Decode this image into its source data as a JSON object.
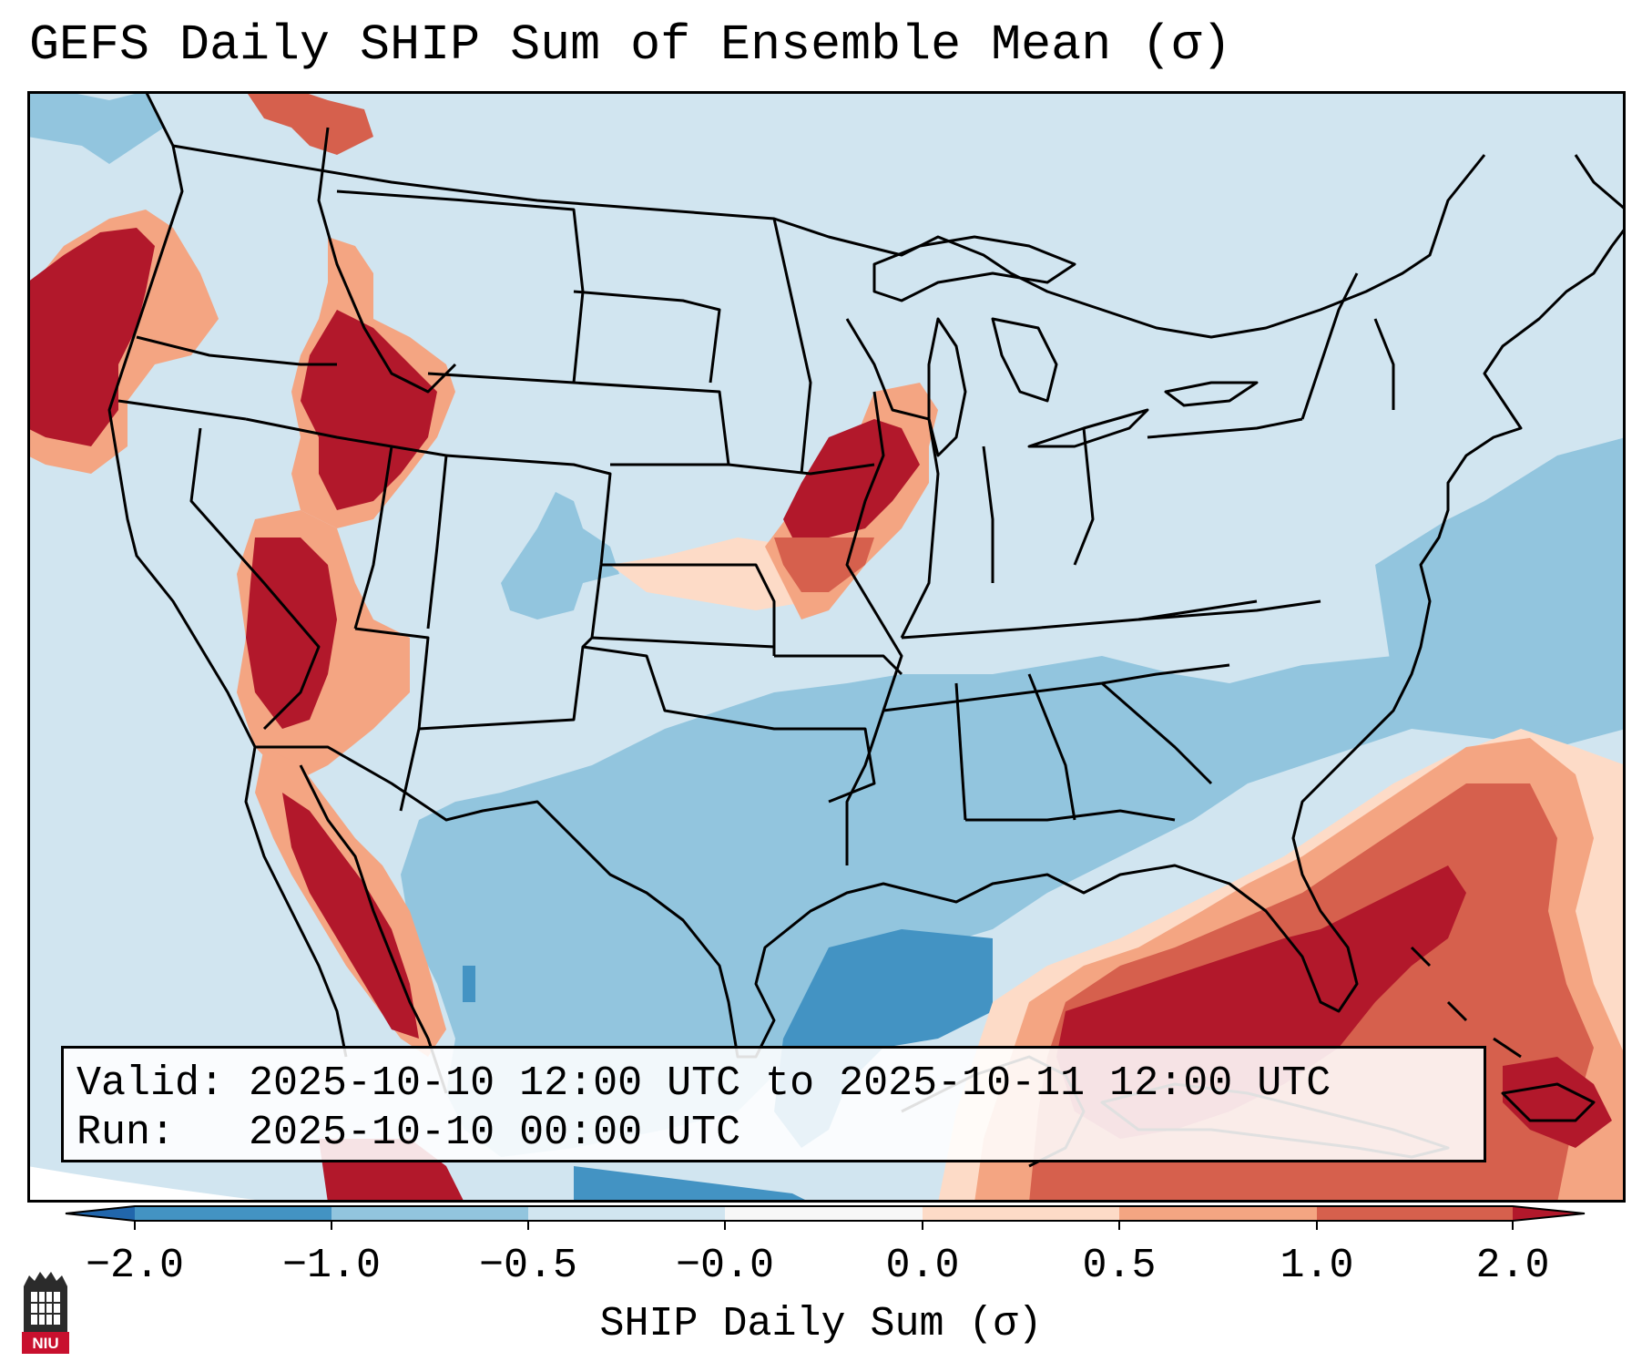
{
  "title": "GEFS Daily SHIP Sum of Ensemble Mean (σ)",
  "info": {
    "valid": "Valid: 2025-10-10 12:00 UTC to 2025-10-11 12:00 UTC",
    "run": "Run:   2025-10-10 00:00 UTC"
  },
  "colorbar": {
    "label": "SHIP Daily Sum (σ)",
    "ticks": [
      "−2.0",
      "−1.0",
      "−0.5",
      "−0.0",
      "0.0",
      "0.5",
      "1.0",
      "2.0"
    ],
    "colors": [
      "#4393c3",
      "#92c5de",
      "#d1e5f0",
      "#f7f7f7",
      "#fddbc7",
      "#f4a582",
      "#d6604d",
      "#b2182b"
    ],
    "extend_low_color": "#2166ac",
    "extend_high_color": "#b2182b"
  },
  "map": {
    "background_color": "#d1e5f0",
    "projection": "Lambert Conformal, CONUS",
    "anomaly_regions": [
      {
        "name": "Pacific Northwest coast",
        "category": "2.0"
      },
      {
        "name": "Idaho / Snake River",
        "category": "2.0"
      },
      {
        "name": "Eastern Nevada",
        "category": "2.0"
      },
      {
        "name": "Baja California / Gulf of California",
        "category": "2.0"
      },
      {
        "name": "Iowa / Missouri",
        "category": "2.0"
      },
      {
        "name": "Kansas",
        "category": "0.0"
      },
      {
        "name": "Gulf of Mexico east / Florida",
        "category": "2.0"
      },
      {
        "name": "Western Atlantic / Bahamas",
        "category": "1.0"
      },
      {
        "name": "Texas / Southern Plains",
        "category": "-1.0"
      },
      {
        "name": "Western Gulf of Mexico",
        "category": "-2.0"
      },
      {
        "name": "Atlantic offshore",
        "category": "-1.0"
      }
    ]
  },
  "logo": {
    "text": "NIU",
    "color": "#c8102e"
  }
}
